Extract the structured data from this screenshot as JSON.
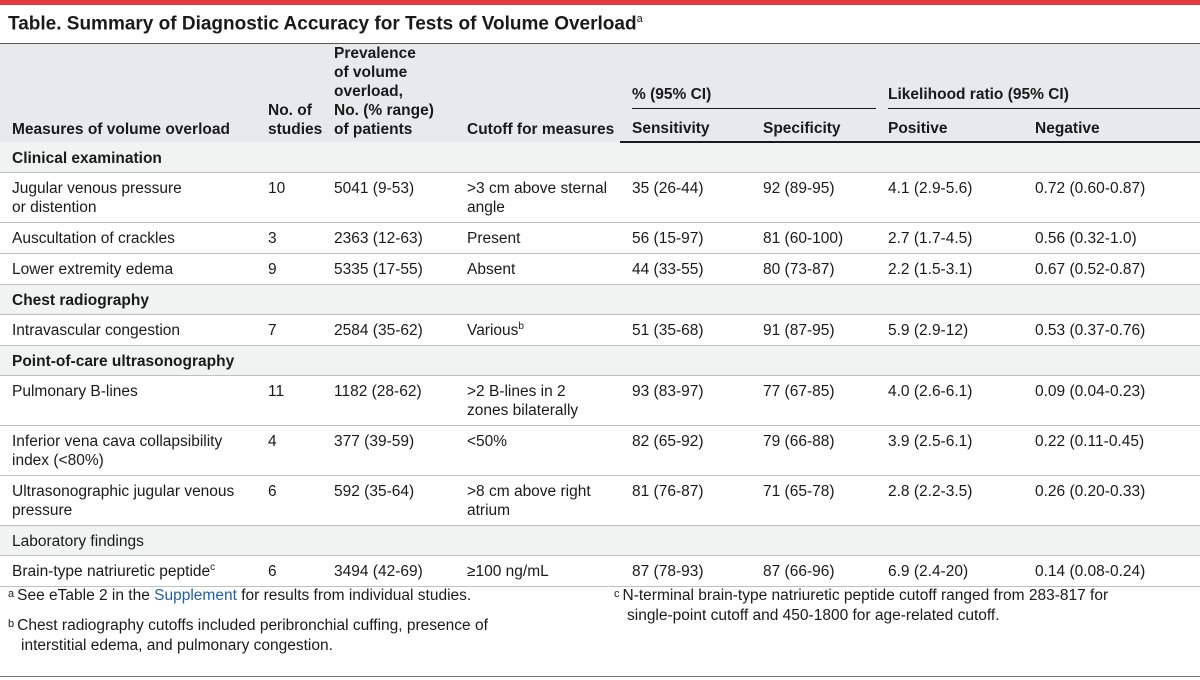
{
  "title": "Table. Summary of Diagnostic Accuracy for Tests of Volume Overload",
  "title_sup": "a",
  "colors": {
    "accent_bar": "#e0393e",
    "header_bg": "#e8e9ea",
    "link": "#1f5fa8"
  },
  "header": {
    "measures": "Measures of volume overload",
    "studies": [
      "No. of",
      "studies"
    ],
    "prevalence": [
      "Prevalence",
      "of volume",
      "overload,",
      "No. (% range)",
      "of patients"
    ],
    "cutoff": "Cutoff for measures",
    "pct_group": "% (95% CI)",
    "sensitivity": "Sensitivity",
    "specificity": "Specificity",
    "lr_group": "Likelihood ratio (95% CI)",
    "positive": "Positive",
    "negative": "Negative"
  },
  "sections": [
    {
      "name": "Clinical examination",
      "rows": [
        {
          "measure": [
            "Jugular venous pressure",
            "or distention"
          ],
          "studies": "10",
          "prevalence": "5041 (9-53)",
          "cutoff": [
            ">3 cm above sternal",
            "angle"
          ],
          "sensitivity": "35 (26-44)",
          "specificity": "92 (89-95)",
          "positive": "4.1 (2.9-5.6)",
          "negative": "0.72 (0.60-0.87)"
        },
        {
          "measure": [
            "Auscultation of crackles"
          ],
          "studies": "3",
          "prevalence": "2363 (12-63)",
          "cutoff": [
            "Present"
          ],
          "sensitivity": "56 (15-97)",
          "specificity": "81 (60-100)",
          "positive": "2.7 (1.7-4.5)",
          "negative": "0.56 (0.32-1.0)"
        },
        {
          "measure": [
            "Lower extremity edema"
          ],
          "studies": "9",
          "prevalence": "5335 (17-55)",
          "cutoff": [
            "Absent"
          ],
          "sensitivity": "44 (33-55)",
          "specificity": "80 (73-87)",
          "positive": "2.2 (1.5-3.1)",
          "negative": "0.67 (0.52-0.87)"
        }
      ]
    },
    {
      "name": "Chest radiography",
      "rows": [
        {
          "measure": [
            "Intravascular congestion"
          ],
          "studies": "7",
          "prevalence": "2584 (35-62)",
          "cutoff": [
            "Various"
          ],
          "cutoff_sup": "b",
          "sensitivity": "51 (35-68)",
          "specificity": "91 (87-95)",
          "positive": "5.9 (2.9-12)",
          "negative": "0.53 (0.37-0.76)"
        }
      ]
    },
    {
      "name": "Point-of-care ultrasonography",
      "rows": [
        {
          "measure": [
            "Pulmonary B-lines"
          ],
          "studies": "11",
          "prevalence": "1182 (28-62)",
          "cutoff": [
            ">2 B-lines in 2",
            "zones bilaterally"
          ],
          "sensitivity": "93 (83-97)",
          "specificity": "77 (67-85)",
          "positive": "4.0 (2.6-6.1)",
          "negative": "0.09 (0.04-0.23)"
        },
        {
          "measure": [
            "Inferior vena cava collapsibility",
            "index (<80%)"
          ],
          "studies": "4",
          "prevalence": "377 (39-59)",
          "cutoff": [
            "<50%"
          ],
          "sensitivity": "82 (65-92)",
          "specificity": "79 (66-88)",
          "positive": "3.9 (2.5-6.1)",
          "negative": "0.22 (0.11-0.45)"
        },
        {
          "measure": [
            "Ultrasonographic jugular venous",
            "pressure"
          ],
          "studies": "6",
          "prevalence": "592 (35-64)",
          "cutoff": [
            ">8 cm above right",
            "atrium"
          ],
          "sensitivity": "81 (76-87)",
          "specificity": "71 (65-78)",
          "positive": "2.8 (2.2-3.5)",
          "negative": "0.26 (0.20-0.33)"
        }
      ]
    },
    {
      "name": "Laboratory findings",
      "plain": true,
      "rows": [
        {
          "measure": [
            "Brain-type natriuretic peptide"
          ],
          "measure_sup": "c",
          "studies": "6",
          "prevalence": "3494 (42-69)",
          "cutoff": [
            "≥100 ng/mL"
          ],
          "sensitivity": "87 (78-93)",
          "specificity": "87 (66-96)",
          "positive": "6.9 (2.4-20)",
          "negative": "0.14 (0.08-0.24)"
        }
      ]
    }
  ],
  "footnotes": {
    "a": {
      "mark": "a",
      "before": "See eTable 2 in the ",
      "link": "Supplement",
      "after": " for results from individual studies."
    },
    "b": {
      "mark": "b",
      "lines": [
        "Chest radiography cutoffs included peribronchial cuffing, presence of",
        "interstitial edema, and pulmonary congestion."
      ]
    },
    "c": {
      "mark": "c",
      "lines": [
        "N-terminal brain-type natriuretic peptide cutoff ranged from 283-817 for",
        "single-point cutoff and 450-1800 for age-related cutoff."
      ]
    }
  }
}
